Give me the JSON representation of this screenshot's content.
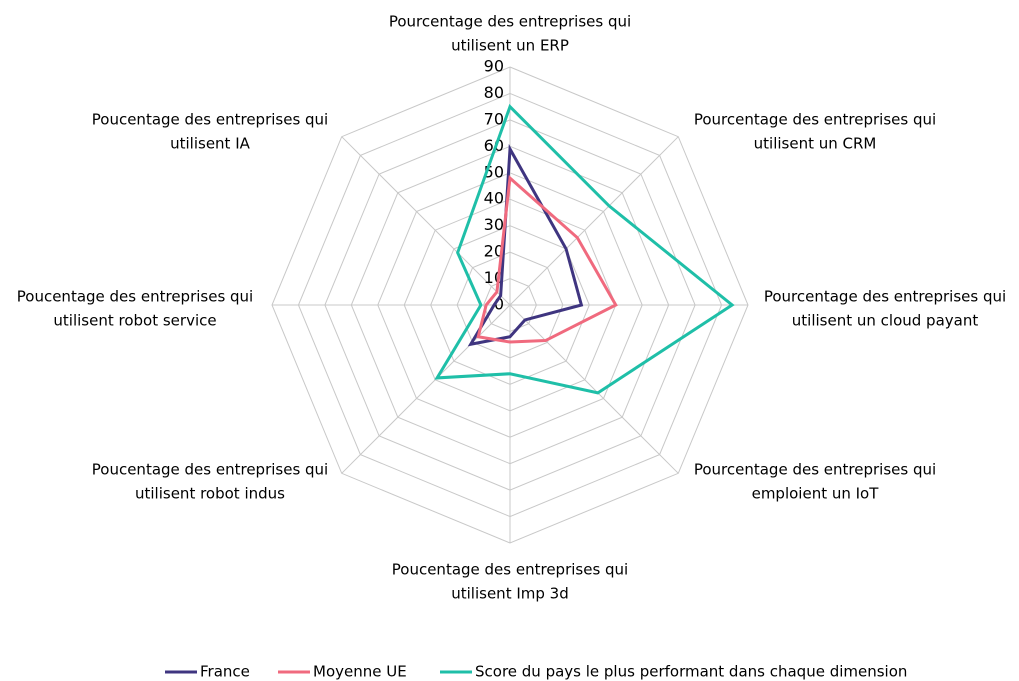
{
  "chart_data": {
    "type": "radar",
    "categories": [
      [
        "Pourcentage des entreprises qui",
        "utilisent un ERP"
      ],
      [
        "Pourcentage des entreprises qui",
        "utilisent un CRM"
      ],
      [
        "Pourcentage des entreprises qui",
        "utilisent un cloud payant"
      ],
      [
        "Pourcentage des entreprises qui",
        "emploient un IoT"
      ],
      [
        "Poucentage des entreprises qui",
        "utilisent Imp 3d"
      ],
      [
        "Poucentage des entreprises qui",
        "utilisent robot indus"
      ],
      [
        "Poucentage des entreprises qui",
        "utilisent robot service"
      ],
      [
        "Poucentage des entreprises qui",
        "utilisent IA"
      ]
    ],
    "series": [
      {
        "name": "France",
        "color": "#3f3580",
        "values": [
          59,
          30,
          27,
          8,
          12,
          21,
          6,
          5
        ]
      },
      {
        "name": "Moyenne UE",
        "color": "#f06a7e",
        "values": [
          48,
          36,
          40,
          19,
          14,
          17,
          9,
          7
        ]
      },
      {
        "name": "Score du pays le plus performant dans chaque dimension",
        "color": "#1fbfa8",
        "values": [
          75,
          53,
          84,
          47,
          26,
          39,
          11,
          28
        ]
      }
    ],
    "ylim": [
      0,
      90
    ],
    "yticks": [
      0,
      10,
      20,
      30,
      40,
      50,
      60,
      70,
      80,
      90
    ],
    "grid": true
  }
}
